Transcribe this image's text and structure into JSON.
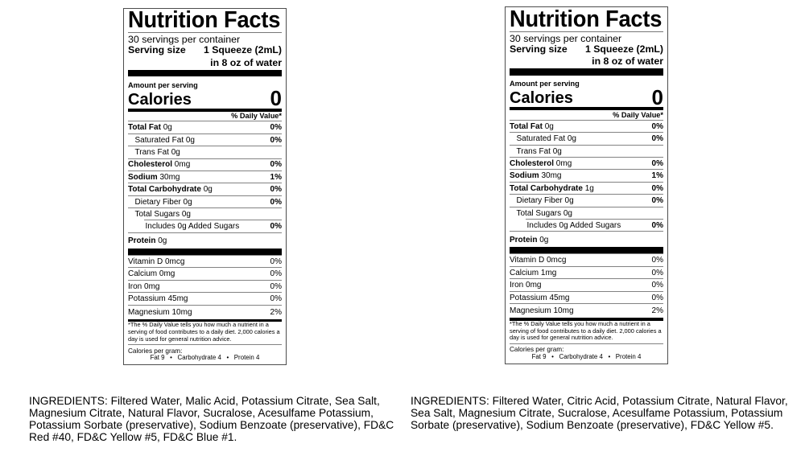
{
  "page": {
    "background": "#ffffff",
    "text_color": "#000000",
    "accent_bar_color": "#000000"
  },
  "labels": [
    {
      "title": "Nutrition Facts",
      "servings_per_container": "30 servings per container",
      "serving_size_label": "Serving size",
      "serving_size_value": "1 Squeeze (2mL)",
      "serving_size_value_line2": "in 8 oz of water",
      "amount_per_serving": "Amount per serving",
      "calories_label": "Calories",
      "calories_value": "0",
      "daily_value_header": "% Daily Value*",
      "nutrients": [
        {
          "name": "Total Fat",
          "amount": "0g",
          "dv": "0%"
        },
        {
          "name": "Saturated Fat",
          "amount": "0g",
          "dv": "0%"
        },
        {
          "name": "Trans Fat",
          "amount": "0g",
          "dv": ""
        },
        {
          "name": "Cholesterol",
          "amount": "0mg",
          "dv": "0%"
        },
        {
          "name": "Sodium",
          "amount": "30mg",
          "dv": "1%"
        },
        {
          "name": "Total Carbohydrate",
          "amount": "0g",
          "dv": "0%"
        },
        {
          "name": "Dietary Fiber",
          "amount": "0g",
          "dv": "0%"
        },
        {
          "name": "Total Sugars",
          "amount": "0g",
          "dv": ""
        },
        {
          "name": "Includes 0g Added Sugars",
          "amount": "",
          "dv": "0%"
        },
        {
          "name": "Protein",
          "amount": "0g",
          "dv": ""
        }
      ],
      "vitamins": [
        {
          "name": "Vitamin D",
          "amount": "0mcg",
          "dv": "0%"
        },
        {
          "name": "Calcium",
          "amount": "0mg",
          "dv": "0%"
        },
        {
          "name": "Iron",
          "amount": "0mg",
          "dv": "0%"
        },
        {
          "name": "Potassium",
          "amount": "45mg",
          "dv": "0%"
        },
        {
          "name": "Magnesium",
          "amount": "10mg",
          "dv": "2%"
        }
      ],
      "footnote_lines": [
        "*The % Daily Value tells you how much a nutrient in a",
        "serving of food contributes to a daily diet. 2,000 calories a",
        "day is used for general nutrition advice."
      ],
      "calories_per_gram_label": "Calories per gram:",
      "calories_per_gram_values": "Fat 9   •   Carbohydrate 4   •   Protein 4",
      "ingredients_lines": [
        "INGREDIENTS: Filtered Water, Malic Acid, Potassium Citrate, Sea Salt,",
        "Magnesium Citrate, Natural Flavor, Sucralose, Acesulfame Potassium,",
        "Potassium Sorbate (preservative), Sodium Benzoate (preservative), FD&C",
        "Red #40, FD&C Yellow #5, FD&C Blue #1."
      ]
    },
    {
      "title": "Nutrition Facts",
      "servings_per_container": "30 servings per container",
      "serving_size_label": "Serving size",
      "serving_size_value": "1 Squeeze (2mL)",
      "serving_size_value_line2": "in 8 oz of water",
      "amount_per_serving": "Amount per serving",
      "calories_label": "Calories",
      "calories_value": "0",
      "daily_value_header": "% Daily Value*",
      "nutrients": [
        {
          "name": "Total Fat",
          "amount": "0g",
          "dv": "0%"
        },
        {
          "name": "Saturated Fat",
          "amount": "0g",
          "dv": "0%"
        },
        {
          "name": "Trans Fat",
          "amount": "0g",
          "dv": ""
        },
        {
          "name": "Cholesterol",
          "amount": "0mg",
          "dv": "0%"
        },
        {
          "name": "Sodium",
          "amount": "30mg",
          "dv": "1%"
        },
        {
          "name": "Total Carbohydrate",
          "amount": "1g",
          "dv": "0%"
        },
        {
          "name": "Dietary Fiber",
          "amount": "0g",
          "dv": "0%"
        },
        {
          "name": "Total Sugars",
          "amount": "0g",
          "dv": ""
        },
        {
          "name": "Includes 0g Added Sugars",
          "amount": "",
          "dv": "0%"
        },
        {
          "name": "Protein",
          "amount": "0g",
          "dv": ""
        }
      ],
      "vitamins": [
        {
          "name": "Vitamin D",
          "amount": "0mcg",
          "dv": "0%"
        },
        {
          "name": "Calcium",
          "amount": "1mg",
          "dv": "0%"
        },
        {
          "name": "Iron",
          "amount": "0mg",
          "dv": "0%"
        },
        {
          "name": "Potassium",
          "amount": "45mg",
          "dv": "0%"
        },
        {
          "name": "Magnesium",
          "amount": "10mg",
          "dv": "2%"
        }
      ],
      "footnote_lines": [
        "*The % Daily Value tells you how much a nutrient in a",
        "serving of food contributes to a daily diet. 2,000 calories a",
        "day is used for general nutrition advice."
      ],
      "calories_per_gram_label": "Calories per gram:",
      "calories_per_gram_values": "Fat 9   •   Carbohydrate 4   •   Protein 4",
      "ingredients_lines": [
        "INGREDIENTS: Filtered Water, Citric Acid, Potassium Citrate, Natural Flavor,",
        "Sea Salt, Magnesium Citrate, Sucralose, Acesulfame Potassium, Potassium",
        "Sorbate (preservative), Sodium Benzoate (preservative), FD&C Yellow #5."
      ]
    }
  ]
}
